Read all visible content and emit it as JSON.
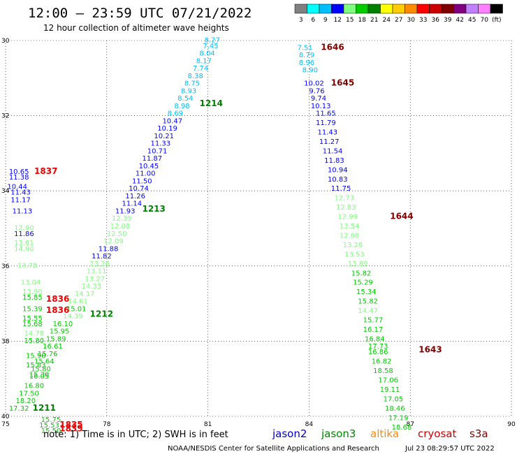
{
  "header": {
    "title": "12:00 – 23:59 UTC 07/21/2022",
    "subtitle": "12 hour collection of altimeter wave heights"
  },
  "colorbar": {
    "labels": [
      "3",
      "6",
      "9",
      "12",
      "15",
      "18",
      "21",
      "24",
      "27",
      "30",
      "33",
      "36",
      "39",
      "42",
      "45",
      "70",
      "(ft)"
    ],
    "colors": [
      "#808080",
      "#00ffff",
      "#00bfff",
      "#0000ff",
      "#7fff7f",
      "#00cc00",
      "#008000",
      "#ffff00",
      "#ffcc00",
      "#ff8c00",
      "#ff0000",
      "#cc0000",
      "#800000",
      "#800080",
      "#c080ff",
      "#ff80ff",
      "#000000"
    ]
  },
  "footer": {
    "note": "note:  1) Time is in UTC;  2) SWH is in feet",
    "credit": "NOAA/NESDIS Center for Satellite Applications and Research",
    "timestamp": "Jul 23 08:29:57 UTC 2022",
    "satellites": [
      {
        "name": "jason2",
        "color": "#0000cc"
      },
      {
        "name": "jason3",
        "color": "#008800"
      },
      {
        "name": "altika",
        "color": "#ff8800"
      },
      {
        "name": "cryosat",
        "color": "#cc0000"
      },
      {
        "name": "s3a",
        "color": "#800000"
      }
    ]
  },
  "chart_data": {
    "type": "scatter",
    "title": "12:00 – 23:59 UTC 07/21/2022",
    "xlim": [
      75,
      90
    ],
    "ylim": [
      40,
      30
    ],
    "xticks": [
      75,
      78,
      81,
      84,
      87,
      90
    ],
    "yticks": [
      30,
      32,
      34,
      36,
      38,
      40
    ],
    "grid": true,
    "points": [
      {
        "x": 80.9,
        "y": 30.05,
        "t": "8.27",
        "c": "#00bfff"
      },
      {
        "x": 80.85,
        "y": 30.2,
        "t": "7.45",
        "c": "#00bfff"
      },
      {
        "x": 80.75,
        "y": 30.4,
        "t": "8.04",
        "c": "#00bfff"
      },
      {
        "x": 80.65,
        "y": 30.6,
        "t": "8.17",
        "c": "#00bfff"
      },
      {
        "x": 80.55,
        "y": 30.8,
        "t": "7.74",
        "c": "#00bfff"
      },
      {
        "x": 80.4,
        "y": 31.0,
        "t": "8.38",
        "c": "#00bfff"
      },
      {
        "x": 80.3,
        "y": 31.2,
        "t": "8.75",
        "c": "#00bfff"
      },
      {
        "x": 80.2,
        "y": 31.4,
        "t": "8.93",
        "c": "#00bfff"
      },
      {
        "x": 80.1,
        "y": 31.6,
        "t": "8.54",
        "c": "#00bfff"
      },
      {
        "x": 80.0,
        "y": 31.8,
        "t": "8.98",
        "c": "#00bfff"
      },
      {
        "x": 79.8,
        "y": 32.0,
        "t": "8.69",
        "c": "#00bfff"
      },
      {
        "x": 79.65,
        "y": 32.2,
        "t": "10.47",
        "c": "#0000ff"
      },
      {
        "x": 79.5,
        "y": 32.4,
        "t": "10.19",
        "c": "#0000ff"
      },
      {
        "x": 79.4,
        "y": 32.6,
        "t": "10.21",
        "c": "#0000ff"
      },
      {
        "x": 79.3,
        "y": 32.8,
        "t": "11.33",
        "c": "#0000ff"
      },
      {
        "x": 79.2,
        "y": 33.0,
        "t": "10.71",
        "c": "#0000ff"
      },
      {
        "x": 79.05,
        "y": 33.2,
        "t": "11.87",
        "c": "#0000ff"
      },
      {
        "x": 78.95,
        "y": 33.4,
        "t": "10.45",
        "c": "#0000ff"
      },
      {
        "x": 78.85,
        "y": 33.6,
        "t": "11.00",
        "c": "#0000ff"
      },
      {
        "x": 78.75,
        "y": 33.8,
        "t": "11.50",
        "c": "#0000ff"
      },
      {
        "x": 78.65,
        "y": 34.0,
        "t": "10.74",
        "c": "#0000ff"
      },
      {
        "x": 78.55,
        "y": 34.2,
        "t": "11.26",
        "c": "#0000ff"
      },
      {
        "x": 78.45,
        "y": 34.4,
        "t": "11.14",
        "c": "#0000ff"
      },
      {
        "x": 78.25,
        "y": 34.6,
        "t": "11.93",
        "c": "#0000ff"
      },
      {
        "x": 78.15,
        "y": 34.8,
        "t": "12.39",
        "c": "#7fff7f"
      },
      {
        "x": 78.1,
        "y": 35.0,
        "t": "12.08",
        "c": "#7fff7f"
      },
      {
        "x": 78.0,
        "y": 35.2,
        "t": "12.50",
        "c": "#7fff7f"
      },
      {
        "x": 77.9,
        "y": 35.4,
        "t": "12.09",
        "c": "#7fff7f"
      },
      {
        "x": 77.75,
        "y": 35.6,
        "t": "11.88",
        "c": "#0000ff"
      },
      {
        "x": 77.55,
        "y": 35.8,
        "t": "11.82",
        "c": "#0000ff"
      },
      {
        "x": 77.5,
        "y": 36.0,
        "t": "13.26",
        "c": "#7fff7f"
      },
      {
        "x": 77.4,
        "y": 36.2,
        "t": "13.11",
        "c": "#7fff7f"
      },
      {
        "x": 77.35,
        "y": 36.4,
        "t": "13.27",
        "c": "#7fff7f"
      },
      {
        "x": 77.25,
        "y": 36.6,
        "t": "14.33",
        "c": "#7fff7f"
      },
      {
        "x": 77.05,
        "y": 36.8,
        "t": "14.17",
        "c": "#7fff7f"
      },
      {
        "x": 76.85,
        "y": 37.0,
        "t": "14.61",
        "c": "#7fff7f"
      },
      {
        "x": 76.8,
        "y": 37.2,
        "t": "15.01",
        "c": "#00cc00"
      },
      {
        "x": 76.7,
        "y": 37.4,
        "t": "14.39",
        "c": "#7fff7f"
      },
      {
        "x": 76.4,
        "y": 37.6,
        "t": "16.10",
        "c": "#00cc00"
      },
      {
        "x": 76.3,
        "y": 37.8,
        "t": "15.95",
        "c": "#00cc00"
      },
      {
        "x": 76.2,
        "y": 38.0,
        "t": "15.89",
        "c": "#00cc00"
      },
      {
        "x": 76.1,
        "y": 38.2,
        "t": "16.61",
        "c": "#00cc00"
      },
      {
        "x": 75.95,
        "y": 38.4,
        "t": "15.76",
        "c": "#00cc00"
      },
      {
        "x": 75.85,
        "y": 38.6,
        "t": "15.64",
        "c": "#00cc00"
      },
      {
        "x": 75.75,
        "y": 38.8,
        "t": "15.80",
        "c": "#00cc00"
      },
      {
        "x": 75.7,
        "y": 39.0,
        "t": "16.05",
        "c": "#00cc00"
      },
      {
        "x": 75.55,
        "y": 39.25,
        "t": "16.80",
        "c": "#00cc00"
      },
      {
        "x": 75.4,
        "y": 39.45,
        "t": "17.50",
        "c": "#00cc00"
      },
      {
        "x": 75.3,
        "y": 39.65,
        "t": "18.20",
        "c": "#00cc00"
      },
      {
        "x": 75.1,
        "y": 39.85,
        "t": "17.32",
        "c": "#00cc00"
      },
      {
        "x": 76.05,
        "y": 40.15,
        "t": "15.75",
        "c": "#00cc00"
      },
      {
        "x": 76.0,
        "y": 40.3,
        "t": "15.53",
        "c": "#00cc00"
      },
      {
        "x": 76.05,
        "y": 40.45,
        "t": "15.50",
        "c": "#00cc00"
      },
      {
        "x": 75.1,
        "y": 33.55,
        "t": "10.65",
        "c": "#0000ff"
      },
      {
        "x": 75.1,
        "y": 33.7,
        "t": "11.38",
        "c": "#0000ff"
      },
      {
        "x": 75.05,
        "y": 33.95,
        "t": "10.44",
        "c": "#0000ff"
      },
      {
        "x": 75.15,
        "y": 34.1,
        "t": "11.43",
        "c": "#0000ff"
      },
      {
        "x": 75.15,
        "y": 34.3,
        "t": "11.17",
        "c": "#0000ff"
      },
      {
        "x": 75.2,
        "y": 34.6,
        "t": "11.13",
        "c": "#0000ff"
      },
      {
        "x": 75.25,
        "y": 35.05,
        "t": "12.90",
        "c": "#7fff7f"
      },
      {
        "x": 75.25,
        "y": 35.2,
        "t": "11.86",
        "c": "#0000ff"
      },
      {
        "x": 75.25,
        "y": 35.45,
        "t": "13.61",
        "c": "#7fff7f"
      },
      {
        "x": 75.25,
        "y": 35.6,
        "t": "14.90",
        "c": "#7fff7f"
      },
      {
        "x": 75.35,
        "y": 36.05,
        "t": "13.78",
        "c": "#7fff7f"
      },
      {
        "x": 75.45,
        "y": 36.5,
        "t": "13.04",
        "c": "#7fff7f"
      },
      {
        "x": 75.5,
        "y": 36.75,
        "t": "13.90",
        "c": "#7fff7f"
      },
      {
        "x": 75.5,
        "y": 36.9,
        "t": "15.85",
        "c": "#00cc00"
      },
      {
        "x": 75.5,
        "y": 37.2,
        "t": "15.39",
        "c": "#00cc00"
      },
      {
        "x": 75.5,
        "y": 37.45,
        "t": "15.55",
        "c": "#00cc00"
      },
      {
        "x": 75.5,
        "y": 37.6,
        "t": "15.68",
        "c": "#00cc00"
      },
      {
        "x": 75.55,
        "y": 37.85,
        "t": "14.78",
        "c": "#7fff7f"
      },
      {
        "x": 75.55,
        "y": 38.05,
        "t": "15.80",
        "c": "#00cc00"
      },
      {
        "x": 75.6,
        "y": 38.45,
        "t": "15.90",
        "c": "#00cc00"
      },
      {
        "x": 75.6,
        "y": 38.7,
        "t": "15.83",
        "c": "#00cc00"
      },
      {
        "x": 75.7,
        "y": 38.95,
        "t": "15.30",
        "c": "#00cc00"
      },
      {
        "x": 83.65,
        "y": 30.25,
        "t": "7.51",
        "c": "#00bfff"
      },
      {
        "x": 83.7,
        "y": 30.45,
        "t": "8.79",
        "c": "#00bfff"
      },
      {
        "x": 83.7,
        "y": 30.65,
        "t": "8.96",
        "c": "#00bfff"
      },
      {
        "x": 83.8,
        "y": 30.85,
        "t": "8.90",
        "c": "#00bfff"
      },
      {
        "x": 83.85,
        "y": 31.2,
        "t": "10.02",
        "c": "#0000ff"
      },
      {
        "x": 84.0,
        "y": 31.4,
        "t": "9.76",
        "c": "#0000ff"
      },
      {
        "x": 84.05,
        "y": 31.6,
        "t": "9.74",
        "c": "#0000ff"
      },
      {
        "x": 84.05,
        "y": 31.8,
        "t": "10.13",
        "c": "#0000ff"
      },
      {
        "x": 84.2,
        "y": 32.0,
        "t": "11.65",
        "c": "#0000ff"
      },
      {
        "x": 84.2,
        "y": 32.25,
        "t": "11.79",
        "c": "#0000ff"
      },
      {
        "x": 84.25,
        "y": 32.5,
        "t": "11.43",
        "c": "#0000ff"
      },
      {
        "x": 84.3,
        "y": 32.75,
        "t": "11.27",
        "c": "#0000ff"
      },
      {
        "x": 84.4,
        "y": 33.0,
        "t": "11.54",
        "c": "#0000ff"
      },
      {
        "x": 84.45,
        "y": 33.25,
        "t": "11.83",
        "c": "#0000ff"
      },
      {
        "x": 84.55,
        "y": 33.5,
        "t": "10.94",
        "c": "#0000ff"
      },
      {
        "x": 84.55,
        "y": 33.75,
        "t": "10.83",
        "c": "#0000ff"
      },
      {
        "x": 84.65,
        "y": 34.0,
        "t": "11.75",
        "c": "#0000ff"
      },
      {
        "x": 84.75,
        "y": 34.25,
        "t": "12.73",
        "c": "#7fff7f"
      },
      {
        "x": 84.8,
        "y": 34.5,
        "t": "12.83",
        "c": "#7fff7f"
      },
      {
        "x": 84.85,
        "y": 34.75,
        "t": "12.99",
        "c": "#7fff7f"
      },
      {
        "x": 84.9,
        "y": 35.0,
        "t": "13.54",
        "c": "#7fff7f"
      },
      {
        "x": 84.9,
        "y": 35.25,
        "t": "12.68",
        "c": "#7fff7f"
      },
      {
        "x": 85.0,
        "y": 35.5,
        "t": "13.28",
        "c": "#7fff7f"
      },
      {
        "x": 85.05,
        "y": 35.75,
        "t": "13.53",
        "c": "#7fff7f"
      },
      {
        "x": 85.15,
        "y": 36.0,
        "t": "13.89",
        "c": "#7fff7f"
      },
      {
        "x": 85.25,
        "y": 36.25,
        "t": "15.82",
        "c": "#00cc00"
      },
      {
        "x": 85.3,
        "y": 36.5,
        "t": "15.29",
        "c": "#00cc00"
      },
      {
        "x": 85.4,
        "y": 36.75,
        "t": "15.34",
        "c": "#00cc00"
      },
      {
        "x": 85.45,
        "y": 37.0,
        "t": "15.82",
        "c": "#00cc00"
      },
      {
        "x": 85.45,
        "y": 37.25,
        "t": "14.47",
        "c": "#7fff7f"
      },
      {
        "x": 85.6,
        "y": 37.5,
        "t": "15.77",
        "c": "#00cc00"
      },
      {
        "x": 85.6,
        "y": 37.75,
        "t": "16.17",
        "c": "#00cc00"
      },
      {
        "x": 85.65,
        "y": 38.0,
        "t": "16.84",
        "c": "#00cc00"
      },
      {
        "x": 85.75,
        "y": 38.2,
        "t": "17.73",
        "c": "#00cc00"
      },
      {
        "x": 85.75,
        "y": 38.35,
        "t": "16.86",
        "c": "#00cc00"
      },
      {
        "x": 85.85,
        "y": 38.6,
        "t": "16.82",
        "c": "#00cc00"
      },
      {
        "x": 85.9,
        "y": 38.85,
        "t": "18.58",
        "c": "#00cc00"
      },
      {
        "x": 86.05,
        "y": 39.1,
        "t": "17.06",
        "c": "#00cc00"
      },
      {
        "x": 86.1,
        "y": 39.35,
        "t": "19.11",
        "c": "#00cc00"
      },
      {
        "x": 86.2,
        "y": 39.6,
        "t": "17.05",
        "c": "#00cc00"
      },
      {
        "x": 86.25,
        "y": 39.85,
        "t": "18.46",
        "c": "#00cc00"
      },
      {
        "x": 86.35,
        "y": 40.1,
        "t": "17.19",
        "c": "#00cc00"
      },
      {
        "x": 86.45,
        "y": 40.35,
        "t": "18.68",
        "c": "#00cc00"
      }
    ],
    "times": [
      {
        "x": 80.75,
        "y": 31.75,
        "t": "1214",
        "c": "#008000"
      },
      {
        "x": 79.05,
        "y": 34.55,
        "t": "1213",
        "c": "#008000"
      },
      {
        "x": 77.5,
        "y": 37.35,
        "t": "1212",
        "c": "#008000"
      },
      {
        "x": 75.8,
        "y": 39.85,
        "t": "1211",
        "c": "#008000"
      },
      {
        "x": 75.85,
        "y": 33.55,
        "t": "1837",
        "c": "#ee0000"
      },
      {
        "x": 76.2,
        "y": 36.95,
        "t": "1836",
        "c": "#ee0000"
      },
      {
        "x": 76.2,
        "y": 37.25,
        "t": "1836",
        "c": "#ee0000"
      },
      {
        "x": 76.6,
        "y": 40.3,
        "t": "1835",
        "c": "#ee0000"
      },
      {
        "x": 76.6,
        "y": 40.4,
        "t": "1839",
        "c": "#ee0000"
      },
      {
        "x": 84.35,
        "y": 30.25,
        "t": "1646",
        "c": "#800000"
      },
      {
        "x": 84.65,
        "y": 31.2,
        "t": "1645",
        "c": "#800000"
      },
      {
        "x": 86.4,
        "y": 34.75,
        "t": "1644",
        "c": "#800000"
      },
      {
        "x": 87.25,
        "y": 38.3,
        "t": "1643",
        "c": "#800000"
      }
    ]
  }
}
